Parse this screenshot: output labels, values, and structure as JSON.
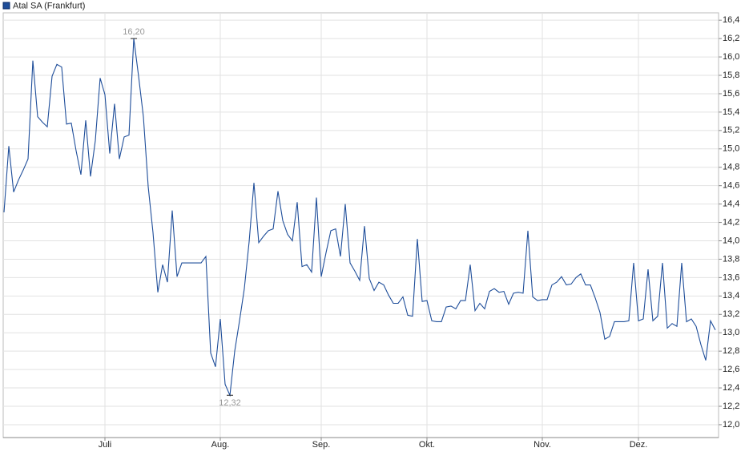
{
  "chart_data": {
    "type": "line",
    "legend": "Atal SA (Frankfurt)",
    "categories": [
      null,
      null,
      null,
      null,
      null,
      null,
      null,
      null,
      null,
      null,
      null,
      null,
      null,
      null,
      null,
      null,
      null,
      null,
      null,
      null,
      null,
      "Juli",
      null,
      null,
      null,
      null,
      null,
      null,
      null,
      null,
      null,
      null,
      null,
      null,
      null,
      null,
      null,
      null,
      null,
      null,
      null,
      null,
      null,
      null,
      null,
      "Aug.",
      null,
      null,
      null,
      null,
      null,
      null,
      null,
      null,
      null,
      null,
      null,
      null,
      null,
      null,
      null,
      null,
      null,
      null,
      null,
      null,
      "Sep.",
      null,
      null,
      null,
      null,
      null,
      null,
      null,
      null,
      null,
      null,
      null,
      null,
      null,
      null,
      null,
      null,
      null,
      null,
      null,
      null,
      null,
      "Okt.",
      null,
      null,
      null,
      null,
      null,
      null,
      null,
      null,
      null,
      null,
      null,
      null,
      null,
      null,
      null,
      null,
      null,
      null,
      null,
      null,
      null,
      null,
      null,
      "Nov.",
      null,
      null,
      null,
      null,
      null,
      null,
      null,
      null,
      null,
      null,
      null,
      null,
      null,
      null,
      null,
      null,
      null,
      null,
      null,
      "Dez.",
      null,
      null,
      null,
      null,
      null,
      null,
      null,
      null,
      null,
      null,
      null,
      null,
      null,
      null,
      null,
      null
    ],
    "values": [
      14.31,
      15.03,
      14.53,
      14.66,
      14.77,
      14.89,
      15.96,
      15.35,
      15.29,
      15.24,
      15.79,
      15.92,
      15.89,
      15.27,
      15.28,
      14.98,
      14.72,
      15.31,
      14.7,
      15.09,
      15.77,
      15.59,
      14.95,
      15.49,
      14.89,
      15.13,
      15.15,
      16.2,
      15.79,
      15.35,
      14.59,
      14.09,
      13.44,
      13.74,
      13.55,
      14.33,
      13.61,
      13.76,
      13.76,
      13.76,
      13.76,
      13.76,
      13.83,
      12.78,
      12.63,
      13.15,
      12.44,
      12.32,
      12.8,
      13.13,
      13.48,
      13.99,
      14.63,
      13.98,
      14.05,
      14.11,
      14.13,
      14.54,
      14.22,
      14.07,
      14.0,
      14.42,
      13.72,
      13.74,
      13.66,
      14.47,
      13.61,
      13.87,
      14.11,
      14.13,
      13.83,
      14.4,
      13.76,
      13.67,
      13.57,
      14.16,
      13.59,
      13.46,
      13.55,
      13.52,
      13.41,
      13.32,
      13.32,
      13.39,
      13.19,
      13.18,
      14.02,
      13.34,
      13.35,
      13.13,
      13.12,
      13.12,
      13.28,
      13.29,
      13.26,
      13.35,
      13.35,
      13.74,
      13.24,
      13.32,
      13.26,
      13.45,
      13.48,
      13.44,
      13.45,
      13.31,
      13.43,
      13.44,
      13.43,
      14.11,
      13.39,
      13.35,
      13.36,
      13.36,
      13.52,
      13.55,
      13.61,
      13.52,
      13.53,
      13.6,
      13.64,
      13.52,
      13.52,
      13.38,
      13.22,
      12.93,
      12.96,
      13.12,
      13.12,
      13.12,
      13.13,
      13.76,
      13.13,
      13.15,
      13.69,
      13.13,
      13.18,
      13.76,
      13.05,
      13.1,
      13.07,
      13.76,
      13.12,
      13.15,
      13.07,
      12.87,
      12.7,
      13.13,
      13.03
    ],
    "value_labels": [
      null,
      null,
      null,
      null,
      null,
      null,
      null,
      null,
      null,
      null,
      null,
      null,
      null,
      null,
      null,
      null,
      null,
      null,
      null,
      null,
      null,
      null,
      null,
      null,
      null,
      null,
      null,
      "16,20",
      null,
      null,
      null,
      null,
      null,
      null,
      null,
      null,
      null,
      null,
      null,
      null,
      null,
      null,
      null,
      null,
      null,
      null,
      null,
      "12,32",
      null,
      null,
      null,
      null,
      null,
      null,
      null,
      null,
      null,
      null,
      null,
      null,
      null,
      null,
      null,
      null,
      null,
      null,
      null,
      null,
      null,
      null,
      null,
      null,
      null,
      null,
      null,
      null,
      null,
      null,
      null,
      null,
      null,
      null,
      null,
      null,
      null,
      null,
      null,
      null,
      null,
      null,
      null,
      null,
      null,
      null,
      null,
      null,
      null,
      null,
      null,
      null,
      null,
      null,
      null,
      null,
      null,
      null,
      null,
      null,
      null,
      null,
      null,
      null,
      null,
      null,
      null,
      null,
      null,
      null,
      null,
      null,
      null,
      null,
      null,
      null,
      null,
      null,
      null,
      null,
      null,
      null,
      null,
      null,
      null,
      null,
      null,
      null,
      null,
      null,
      null,
      null,
      null,
      null,
      null,
      null,
      null,
      null,
      null,
      null,
      null
    ],
    "color": "#1f4e9a",
    "ylim": [
      11.86,
      16.48
    ],
    "yticks": [
      {
        "value": 12.0,
        "label": "12,0"
      },
      {
        "value": 12.2,
        "label": "12,2"
      },
      {
        "value": 12.4,
        "label": "12,4"
      },
      {
        "value": 12.6,
        "label": "12,6"
      },
      {
        "value": 12.8,
        "label": "12,8"
      },
      {
        "value": 13.0,
        "label": "13,0"
      },
      {
        "value": 13.2,
        "label": "13,2"
      },
      {
        "value": 13.4,
        "label": "13,4"
      },
      {
        "value": 13.6,
        "label": "13,6"
      },
      {
        "value": 13.8,
        "label": "13,8"
      },
      {
        "value": 14.0,
        "label": "14,0"
      },
      {
        "value": 14.2,
        "label": "14,2"
      },
      {
        "value": 14.4,
        "label": "14,4"
      },
      {
        "value": 14.6,
        "label": "14,6"
      },
      {
        "value": 14.8,
        "label": "14,8"
      },
      {
        "value": 15.0,
        "label": "15,0"
      },
      {
        "value": 15.2,
        "label": "15,2"
      },
      {
        "value": 15.4,
        "label": "15,4"
      },
      {
        "value": 15.6,
        "label": "15,6"
      },
      {
        "value": 15.8,
        "label": "15,8"
      },
      {
        "value": 16.0,
        "label": "16,0"
      },
      {
        "value": 16.2,
        "label": "16,2"
      },
      {
        "value": 16.4,
        "label": "16,4"
      }
    ],
    "grid": true
  }
}
